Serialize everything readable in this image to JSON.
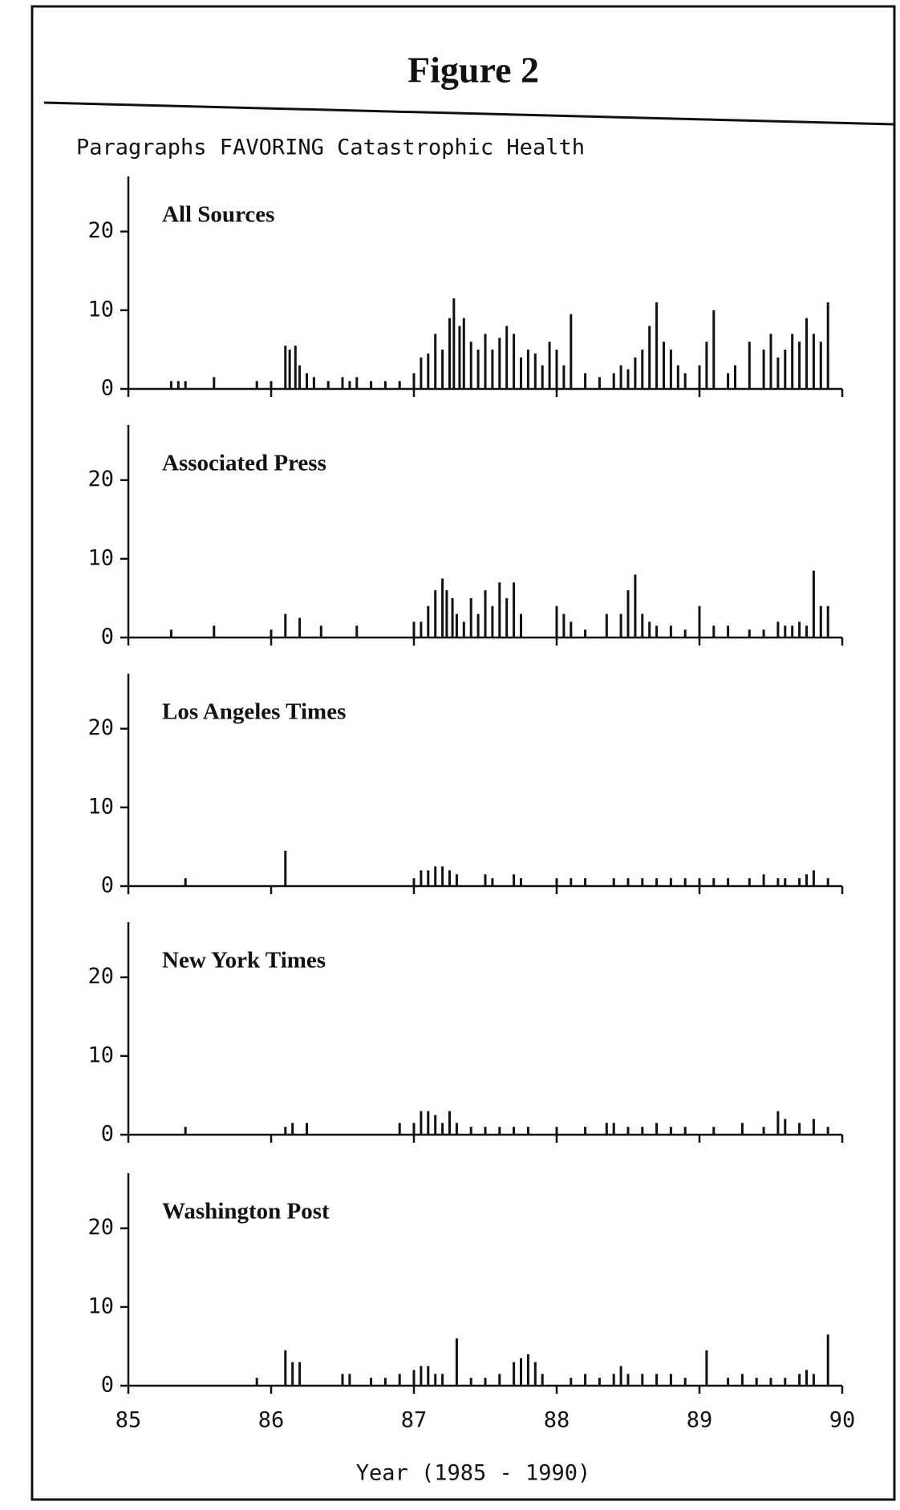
{
  "figure": {
    "title": "Figure 2",
    "subtitle": "Paragraphs FAVORING Catastrophic Health",
    "xlabel": "Year (1985 - 1990)"
  },
  "chart_data": [
    {
      "type": "bar",
      "title": "All Sources",
      "color": "#111111",
      "xlim": [
        85,
        90
      ],
      "xticks": [
        85,
        86,
        87,
        88,
        89,
        90
      ],
      "ylim": [
        0,
        27
      ],
      "yticks": [
        0,
        10,
        20
      ],
      "x": [
        85.3,
        85.35,
        85.4,
        85.6,
        85.9,
        86.0,
        86.1,
        86.13,
        86.17,
        86.2,
        86.25,
        86.3,
        86.4,
        86.5,
        86.55,
        86.6,
        86.7,
        86.8,
        86.9,
        87.0,
        87.05,
        87.1,
        87.15,
        87.2,
        87.25,
        87.28,
        87.32,
        87.35,
        87.4,
        87.45,
        87.5,
        87.55,
        87.6,
        87.65,
        87.7,
        87.75,
        87.8,
        87.85,
        87.9,
        87.95,
        88.0,
        88.05,
        88.1,
        88.2,
        88.3,
        88.4,
        88.45,
        88.5,
        88.55,
        88.6,
        88.65,
        88.7,
        88.75,
        88.8,
        88.85,
        88.9,
        89.0,
        89.05,
        89.1,
        89.2,
        89.25,
        89.35,
        89.45,
        89.5,
        89.55,
        89.6,
        89.65,
        89.7,
        89.75,
        89.8,
        89.85,
        89.9
      ],
      "values": [
        1,
        1,
        1,
        1.5,
        1,
        1,
        5.5,
        5,
        5.5,
        3,
        2,
        1.5,
        1,
        1.5,
        1,
        1.5,
        1,
        1,
        1,
        2,
        4,
        4.5,
        7,
        5,
        9,
        11.5,
        8,
        9,
        6,
        5,
        7,
        5,
        6.5,
        8,
        7,
        4,
        5,
        4.5,
        3,
        6,
        5,
        3,
        9.5,
        2,
        1.5,
        2,
        3,
        2.5,
        4,
        5,
        8,
        11,
        6,
        5,
        3,
        2,
        3,
        6,
        10,
        2,
        3,
        6,
        5,
        7,
        4,
        5,
        7,
        6,
        9,
        7,
        6,
        11
      ]
    },
    {
      "type": "bar",
      "title": "Associated Press",
      "color": "#111111",
      "xlim": [
        85,
        90
      ],
      "xticks": [
        85,
        86,
        87,
        88,
        89,
        90
      ],
      "ylim": [
        0,
        27
      ],
      "yticks": [
        0,
        10,
        20
      ],
      "x": [
        85.3,
        85.6,
        86.0,
        86.1,
        86.2,
        86.35,
        86.6,
        87.0,
        87.05,
        87.1,
        87.15,
        87.2,
        87.23,
        87.27,
        87.3,
        87.35,
        87.4,
        87.45,
        87.5,
        87.55,
        87.6,
        87.65,
        87.7,
        87.75,
        88.0,
        88.05,
        88.1,
        88.2,
        88.35,
        88.45,
        88.5,
        88.55,
        88.6,
        88.65,
        88.7,
        88.8,
        88.9,
        89.0,
        89.1,
        89.2,
        89.35,
        89.45,
        89.55,
        89.6,
        89.65,
        89.7,
        89.75,
        89.8,
        89.85,
        89.9
      ],
      "values": [
        1,
        1.5,
        1,
        3,
        2.5,
        1.5,
        1.5,
        2,
        2,
        4,
        6,
        7.5,
        6,
        5,
        3,
        2,
        5,
        3,
        6,
        4,
        7,
        5,
        7,
        3,
        4,
        3,
        2,
        1,
        3,
        3,
        6,
        8,
        3,
        2,
        1.5,
        1.5,
        1,
        4,
        1.5,
        1.5,
        1,
        1,
        2,
        1.5,
        1.5,
        2,
        1.5,
        8.5,
        4,
        4
      ]
    },
    {
      "type": "bar",
      "title": "Los Angeles Times",
      "color": "#111111",
      "xlim": [
        85,
        90
      ],
      "xticks": [
        85,
        86,
        87,
        88,
        89,
        90
      ],
      "ylim": [
        0,
        27
      ],
      "yticks": [
        0,
        10,
        20
      ],
      "x": [
        85.4,
        86.1,
        87.0,
        87.05,
        87.1,
        87.15,
        87.2,
        87.25,
        87.3,
        87.5,
        87.55,
        87.7,
        87.75,
        88.0,
        88.1,
        88.2,
        88.4,
        88.5,
        88.6,
        88.7,
        88.8,
        88.9,
        89.0,
        89.1,
        89.2,
        89.35,
        89.45,
        89.55,
        89.6,
        89.7,
        89.75,
        89.8,
        89.9
      ],
      "values": [
        1,
        4.5,
        1,
        2,
        2,
        2.5,
        2.5,
        2,
        1.5,
        1.5,
        1,
        1.5,
        1,
        1,
        1,
        1,
        1,
        1,
        1,
        1,
        1,
        1,
        1,
        1,
        1,
        1,
        1.5,
        1,
        1,
        1,
        1.5,
        2,
        1
      ]
    },
    {
      "type": "bar",
      "title": "New York Times",
      "color": "#111111",
      "xlim": [
        85,
        90
      ],
      "xticks": [
        85,
        86,
        87,
        88,
        89,
        90
      ],
      "ylim": [
        0,
        27
      ],
      "yticks": [
        0,
        10,
        20
      ],
      "x": [
        85.4,
        86.1,
        86.15,
        86.25,
        86.9,
        87.0,
        87.05,
        87.1,
        87.15,
        87.2,
        87.25,
        87.3,
        87.4,
        87.5,
        87.6,
        87.7,
        87.8,
        88.0,
        88.2,
        88.35,
        88.4,
        88.5,
        88.6,
        88.7,
        88.8,
        88.9,
        89.1,
        89.3,
        89.45,
        89.55,
        89.6,
        89.7,
        89.8,
        89.9
      ],
      "values": [
        1,
        1,
        1.5,
        1.5,
        1.5,
        1.5,
        3,
        3,
        2.5,
        1.5,
        3,
        1.5,
        1,
        1,
        1,
        1,
        1,
        1,
        1,
        1.5,
        1.5,
        1,
        1,
        1.5,
        1,
        1,
        1,
        1.5,
        1,
        3,
        2,
        1.5,
        2,
        1
      ]
    },
    {
      "type": "bar",
      "title": "Washington Post",
      "color": "#111111",
      "xlim": [
        85,
        90
      ],
      "xticks": [
        85,
        86,
        87,
        88,
        89,
        90
      ],
      "ylim": [
        0,
        27
      ],
      "yticks": [
        0,
        10,
        20
      ],
      "x": [
        85.9,
        86.1,
        86.15,
        86.2,
        86.5,
        86.55,
        86.7,
        86.8,
        86.9,
        87.0,
        87.05,
        87.1,
        87.15,
        87.2,
        87.3,
        87.4,
        87.5,
        87.6,
        87.7,
        87.75,
        87.8,
        87.85,
        87.9,
        88.1,
        88.2,
        88.3,
        88.4,
        88.45,
        88.5,
        88.6,
        88.7,
        88.8,
        88.9,
        89.05,
        89.2,
        89.3,
        89.4,
        89.5,
        89.6,
        89.7,
        89.75,
        89.8,
        89.9
      ],
      "values": [
        1,
        4.5,
        3,
        3,
        1.5,
        1.5,
        1,
        1,
        1.5,
        2,
        2.5,
        2.5,
        1.5,
        1.5,
        6,
        1,
        1,
        1.5,
        3,
        3.5,
        4,
        3,
        1.5,
        1,
        1.5,
        1,
        1.5,
        2.5,
        1.5,
        1.5,
        1.5,
        1.5,
        1,
        4.5,
        1,
        1.5,
        1,
        1,
        1,
        1.5,
        2,
        1.5,
        6.5
      ]
    }
  ]
}
